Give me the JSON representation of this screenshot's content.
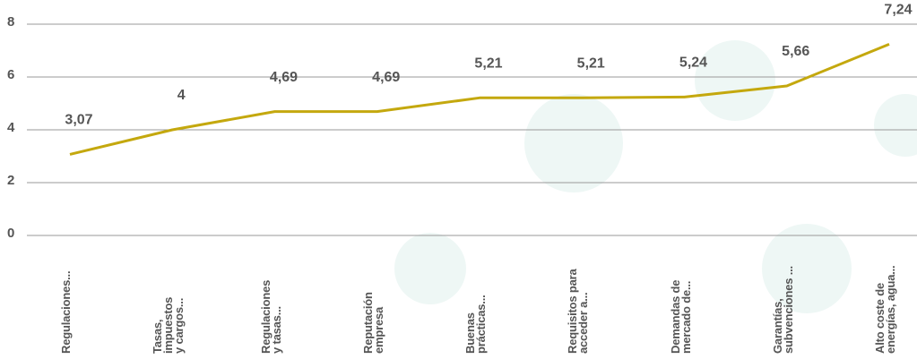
{
  "chart_data": {
    "type": "line",
    "categories": [
      "Regulaciones...",
      "Tasas,\nimpuestos\ny cargos...",
      "Regulaciones\ny tasas...",
      "Reputación\nempresa",
      "Buenas\nprácticas...",
      "Requisitos para\nacceder a...",
      "Demandas de\nmercado de...",
      "Garantías,\nsubvenciones ...",
      "Alto coste de\nenergías, agua..."
    ],
    "series": [
      {
        "color": "#c4a80e",
        "values": [
          3.07,
          4,
          4.69,
          4.69,
          5.21,
          5.21,
          5.24,
          5.66,
          7.24
        ],
        "value_labels": [
          "3,07",
          "4",
          "4,69",
          "4,69",
          "5,21",
          "5,21",
          "5,24",
          "5,66",
          "7,24"
        ]
      }
    ],
    "ylim": [
      0,
      8
    ],
    "yticks": [
      0,
      2,
      4,
      6,
      8
    ],
    "grid": true
  }
}
